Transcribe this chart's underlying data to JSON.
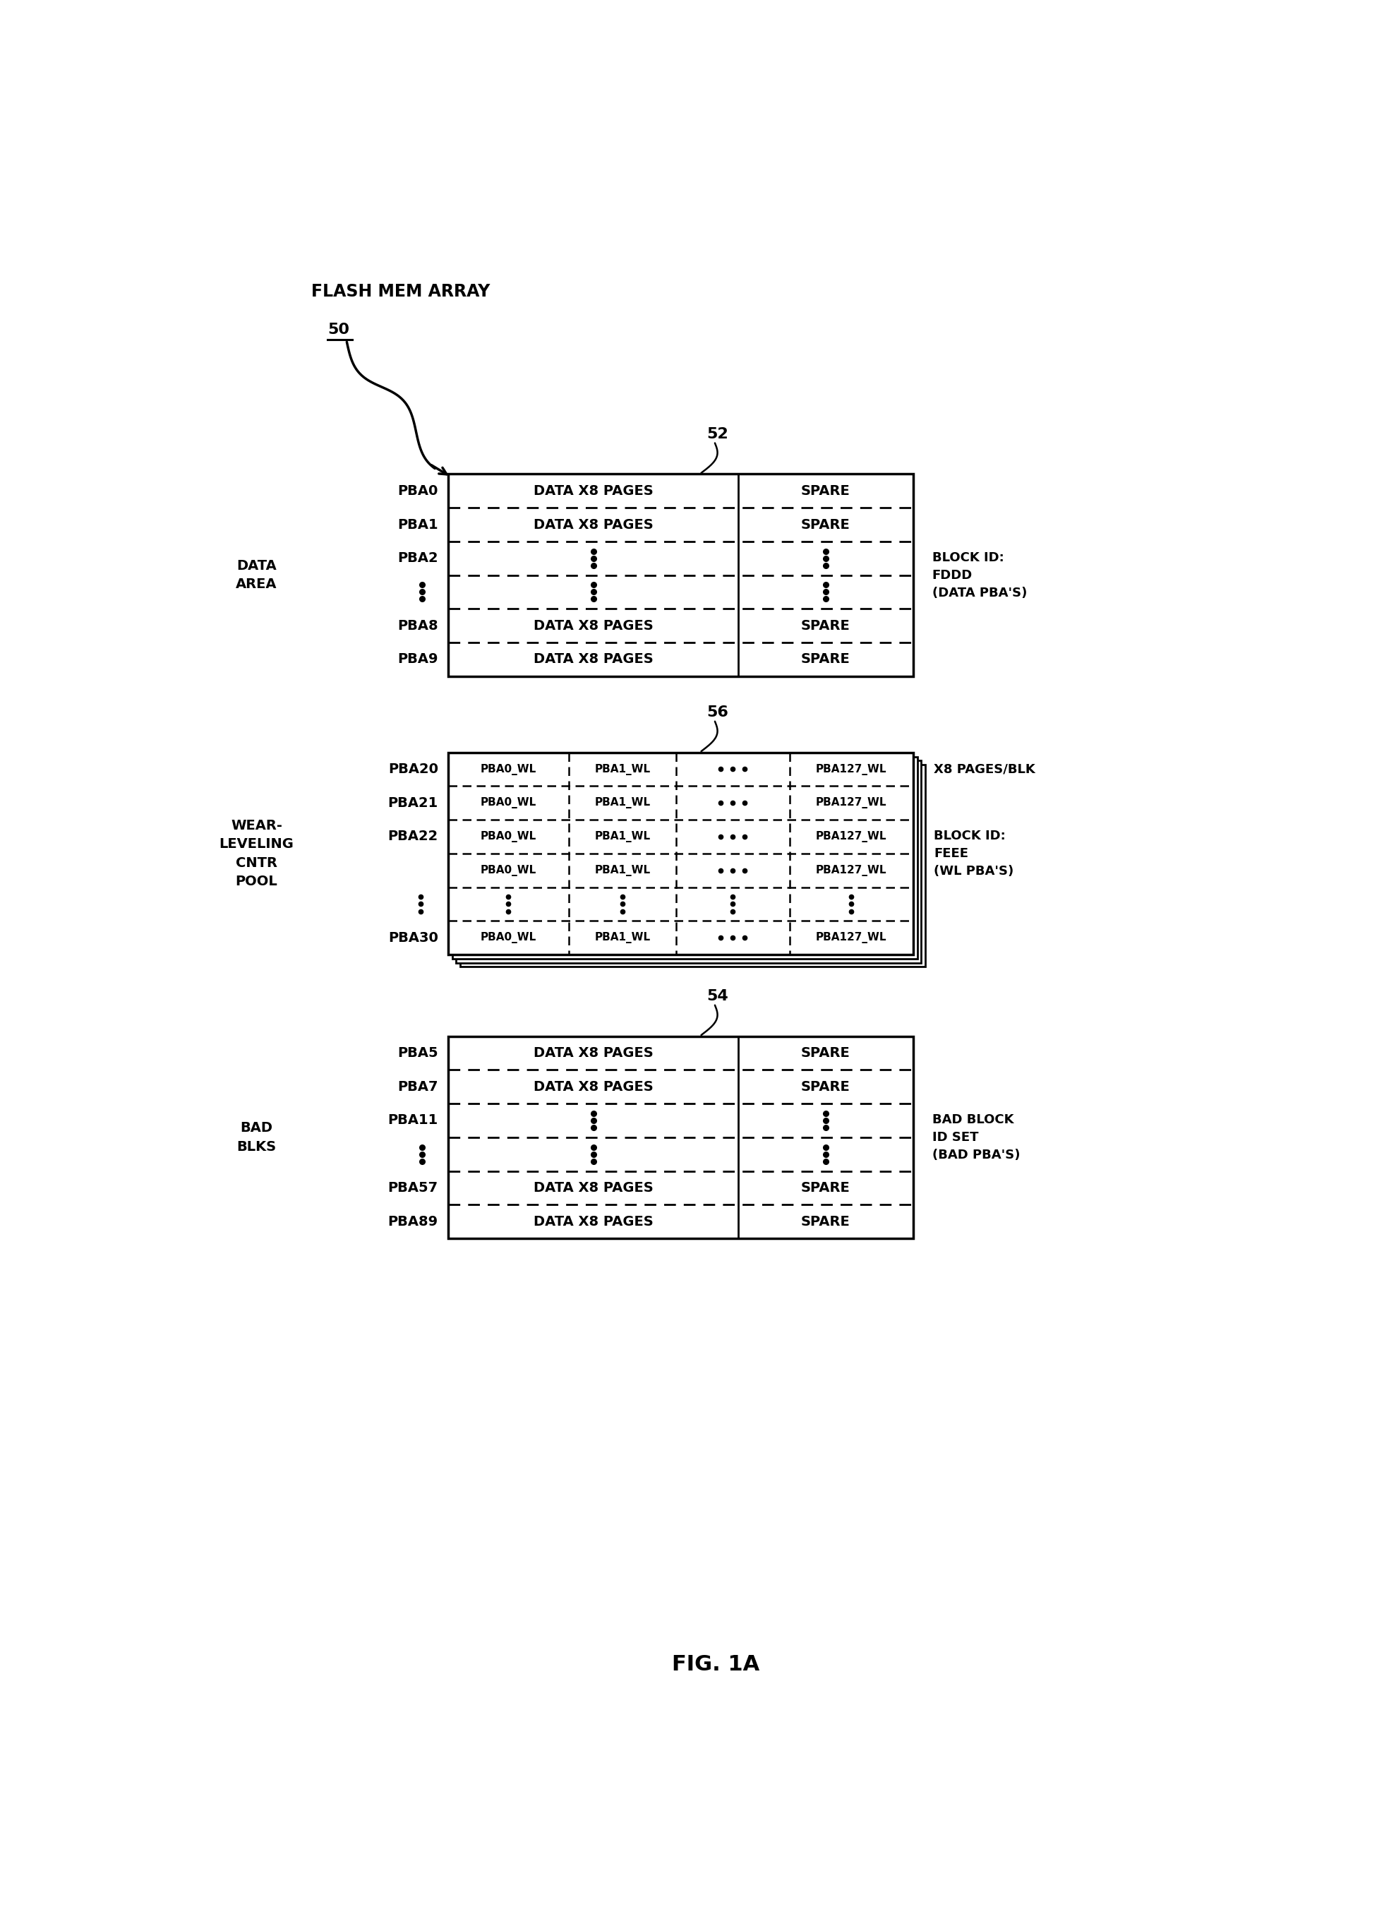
{
  "fig_width": 19.78,
  "fig_height": 27.01,
  "bg_color": "#ffffff",
  "flash_label": "FLASH MEM ARRAY",
  "flash_num": "50",
  "s1_num": "52",
  "s1_rows": [
    "PBA0",
    "PBA1",
    "PBA2",
    "",
    "PBA8",
    "PBA9"
  ],
  "s1_texts": [
    "DATA X8 PAGES",
    "DATA X8 PAGES",
    "",
    "",
    "DATA X8 PAGES",
    "DATA X8 PAGES"
  ],
  "s1_spares": [
    "SPARE",
    "SPARE",
    "",
    "",
    "SPARE",
    "SPARE"
  ],
  "s1_side": "DATA\nAREA",
  "s1_right": "BLOCK ID:\nFDDD\n(DATA PBA'S)",
  "s2_num": "56",
  "s2_rows": [
    "PBA20",
    "PBA21",
    "PBA22",
    "",
    "",
    "PBA30"
  ],
  "s2_has_content": [
    true,
    true,
    true,
    true,
    false,
    true
  ],
  "s2_side": "WEAR-\nLEVELING\nCNTR\nPOOL",
  "s2_right_top": "X8 PAGES/BLK",
  "s2_right_mid": "BLOCK ID:\nFEEE\n(WL PBA'S)",
  "s3_num": "54",
  "s3_rows": [
    "PBA5",
    "PBA7",
    "PBA11",
    "",
    "PBA57",
    "PBA89"
  ],
  "s3_texts": [
    "DATA X8 PAGES",
    "DATA X8 PAGES",
    "",
    "",
    "DATA X8 PAGES",
    "DATA X8 PAGES"
  ],
  "s3_spares": [
    "SPARE",
    "SPARE",
    "",
    "",
    "SPARE",
    "SPARE"
  ],
  "s3_side": "BAD\nBLKS",
  "s3_right": "BAD BLOCK\nID SET\n(BAD PBA'S)",
  "fig_title": "FIG. 1A"
}
